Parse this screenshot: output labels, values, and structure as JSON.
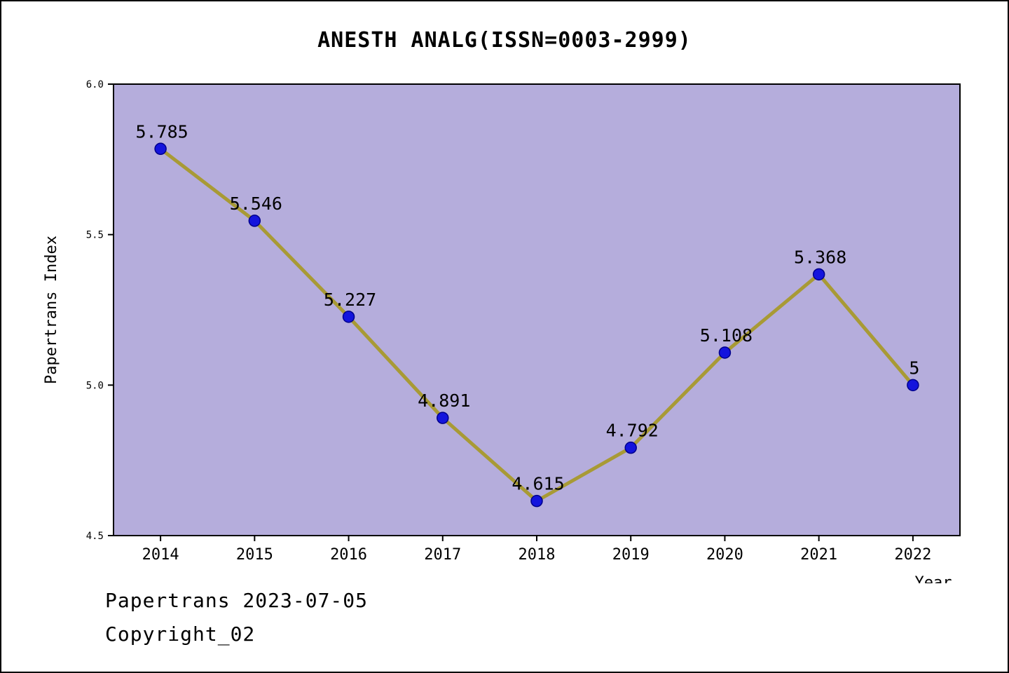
{
  "title": "ANESTH ANALG(ISSN=0003-2999)",
  "footer": {
    "date_line": "Papertrans 2023-07-05",
    "copyright_line": "Copyright_02"
  },
  "chart_data": {
    "type": "line",
    "title": "ANESTH ANALG(ISSN=0003-2999)",
    "xlabel": "Year",
    "ylabel": "Papertrans Index",
    "categories": [
      "2014",
      "2015",
      "2016",
      "2017",
      "2018",
      "2019",
      "2020",
      "2021",
      "2022"
    ],
    "values": [
      5.785,
      5.546,
      5.227,
      4.891,
      4.615,
      4.792,
      5.108,
      5.368,
      5.0
    ],
    "point_labels": [
      "5.785",
      "5.546",
      "5.227",
      "4.891",
      "4.615",
      "4.792",
      "5.108",
      "5.368",
      "5"
    ],
    "ylim": [
      4.5,
      6.0
    ],
    "yticks": [
      4.5,
      5.0,
      5.5,
      6.0
    ],
    "ytick_labels": [
      "4.5",
      "5.0",
      "5.5",
      "6.0"
    ],
    "grid": false,
    "legend": "none",
    "colors": {
      "plot_background": "#b5addc",
      "line": "#a89a35",
      "marker_fill": "#1414dd",
      "marker_edge": "#00008b",
      "axis": "#000000",
      "text": "#000000"
    }
  }
}
